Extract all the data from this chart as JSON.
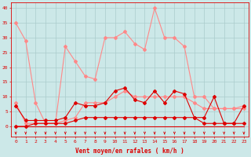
{
  "hours": [
    0,
    1,
    2,
    3,
    4,
    5,
    6,
    7,
    8,
    9,
    10,
    11,
    12,
    13,
    14,
    15,
    16,
    17,
    18,
    19,
    20,
    21,
    22,
    23
  ],
  "series_pink1": [
    35,
    29,
    8,
    1,
    1,
    27,
    22,
    17,
    16,
    30,
    30,
    32,
    28,
    26,
    40,
    30,
    30,
    27,
    10,
    10,
    6,
    6,
    6,
    7
  ],
  "series_pink2": [
    8,
    1,
    1,
    1,
    1,
    2,
    3,
    8,
    8,
    8,
    10,
    12,
    10,
    10,
    10,
    10,
    10,
    10,
    8,
    6,
    6,
    6,
    6,
    6
  ],
  "series_dark1": [
    7,
    2,
    2,
    2,
    2,
    3,
    8,
    7,
    7,
    8,
    12,
    13,
    9,
    8,
    12,
    8,
    12,
    11,
    3,
    3,
    10,
    1,
    1,
    7
  ],
  "series_dark2": [
    0,
    0,
    1,
    1,
    1,
    1,
    2,
    3,
    3,
    3,
    3,
    3,
    3,
    3,
    3,
    3,
    3,
    3,
    3,
    1,
    1,
    1,
    1,
    1
  ],
  "series_dark3": [
    0,
    0,
    0,
    0,
    0,
    0,
    0,
    0,
    0,
    0,
    0,
    0,
    0,
    0,
    0,
    0,
    0,
    0,
    0,
    0,
    0,
    0,
    0,
    0
  ],
  "bg_color": "#cce8e8",
  "grid_color": "#aacccc",
  "line_color_light": "#ff8888",
  "line_color_dark": "#dd0000",
  "xlabel": "Vent moyen/en rafales ( km/h )",
  "xlim": [
    -0.5,
    23.5
  ],
  "ylim": [
    -3.5,
    42
  ],
  "yticks": [
    0,
    5,
    10,
    15,
    20,
    25,
    30,
    35,
    40
  ],
  "marker": "D",
  "markersize": 2.0
}
